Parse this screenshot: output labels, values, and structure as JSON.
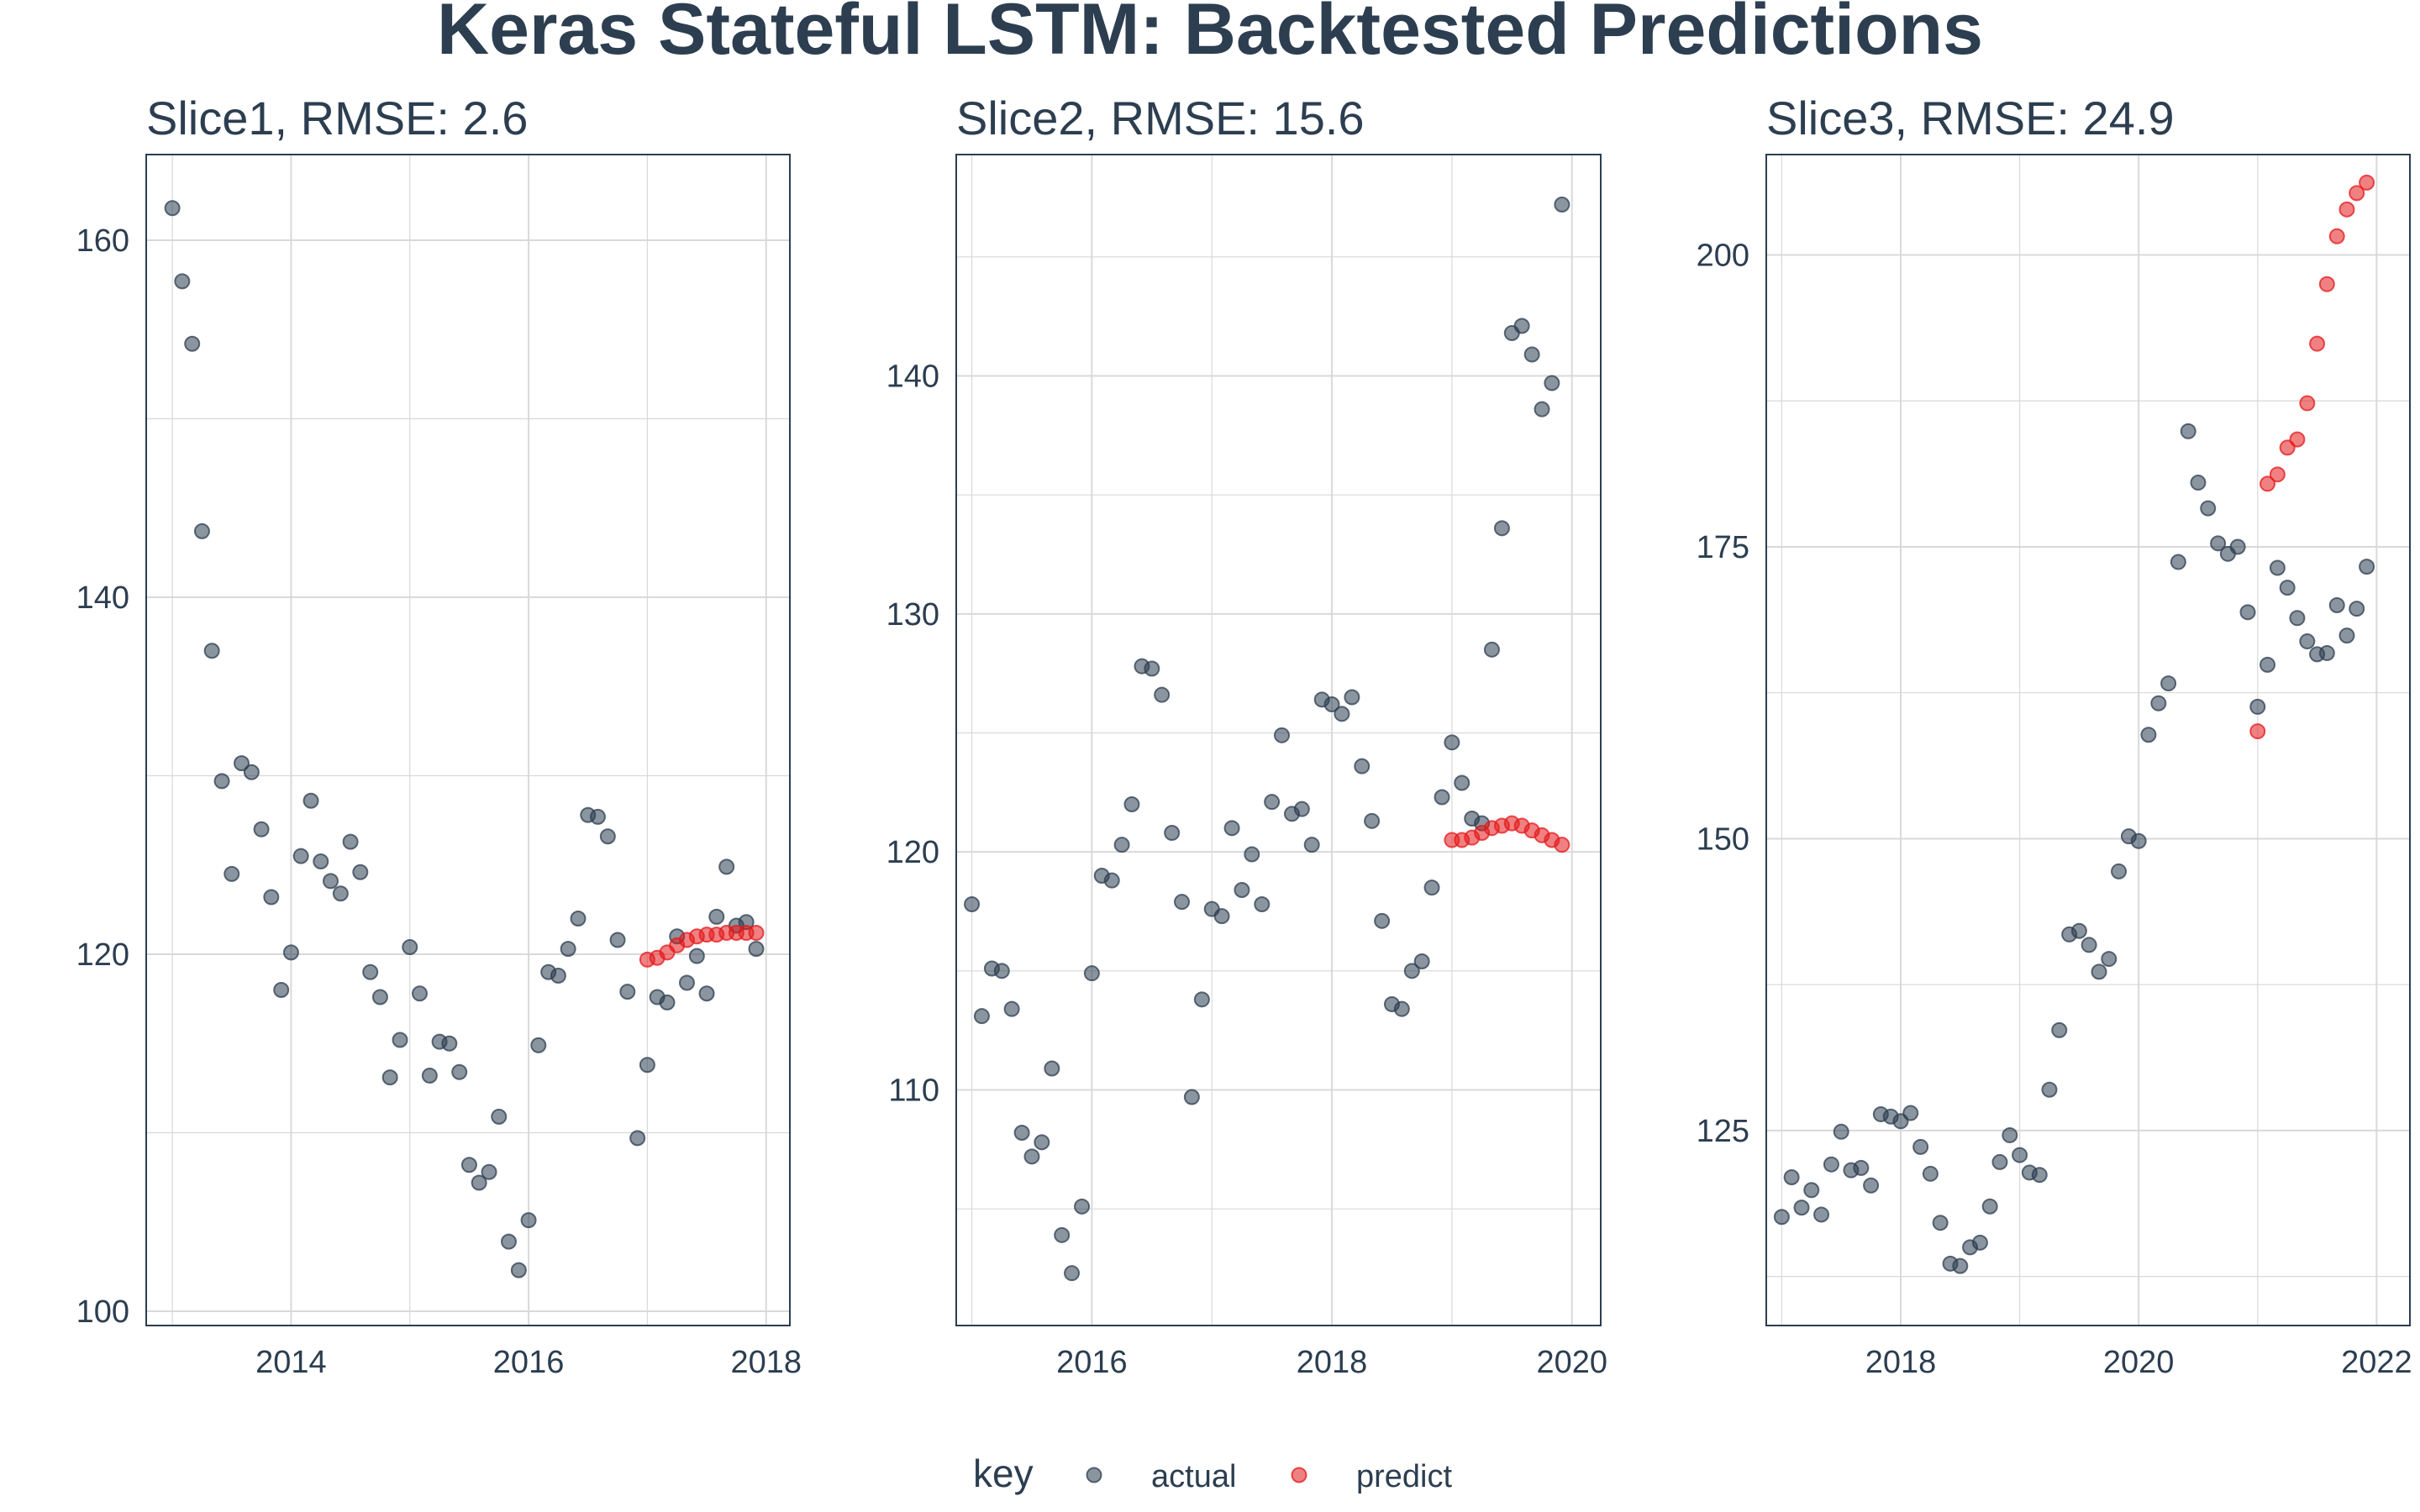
{
  "title": "Keras Stateful LSTM: Backtested Predictions",
  "colors": {
    "text": "#2c3e50",
    "actual": "#2c3e50",
    "predict": "#e31a1c",
    "grid": "#d9d9d9",
    "panel_border": "#2c3e50"
  },
  "legend": {
    "title": "key",
    "items": [
      {
        "label": "actual",
        "key": "actual"
      },
      {
        "label": "predict",
        "key": "predict"
      }
    ]
  },
  "chart_data": [
    {
      "type": "scatter",
      "title": "Slice1, RMSE: 2.6",
      "xlim": [
        2012.78,
        2018.2
      ],
      "ylim": [
        99.2,
        164.8
      ],
      "x_ticks": [
        2014,
        2016,
        2018
      ],
      "x_tick_labels": [
        "2014",
        "2016",
        "2018"
      ],
      "y_ticks": [
        100,
        120,
        140,
        160
      ],
      "y_tick_labels": [
        "100",
        "120",
        "140",
        "160"
      ],
      "grid": true,
      "actual": [
        [
          2013.0,
          161.8
        ],
        [
          2013.083,
          157.7
        ],
        [
          2013.167,
          154.2
        ],
        [
          2013.25,
          143.7
        ],
        [
          2013.333,
          137.0
        ],
        [
          2013.417,
          129.7
        ],
        [
          2013.5,
          124.5
        ],
        [
          2013.583,
          130.7
        ],
        [
          2013.667,
          130.2
        ],
        [
          2013.75,
          127.0
        ],
        [
          2013.833,
          123.2
        ],
        [
          2013.917,
          118.0
        ],
        [
          2014.0,
          120.1
        ],
        [
          2014.083,
          125.5
        ],
        [
          2014.167,
          128.6
        ],
        [
          2014.25,
          125.2
        ],
        [
          2014.333,
          124.1
        ],
        [
          2014.417,
          123.4
        ],
        [
          2014.5,
          126.3
        ],
        [
          2014.583,
          124.6
        ],
        [
          2014.667,
          119.0
        ],
        [
          2014.75,
          117.6
        ],
        [
          2014.833,
          113.1
        ],
        [
          2014.917,
          115.2
        ],
        [
          2015.0,
          120.4
        ],
        [
          2015.083,
          117.8
        ],
        [
          2015.167,
          113.2
        ],
        [
          2015.25,
          115.1
        ],
        [
          2015.333,
          115.0
        ],
        [
          2015.417,
          113.4
        ],
        [
          2015.5,
          108.2
        ],
        [
          2015.583,
          107.2
        ],
        [
          2015.667,
          107.8
        ],
        [
          2015.75,
          110.9
        ],
        [
          2015.833,
          103.9
        ],
        [
          2015.917,
          102.3
        ],
        [
          2016.0,
          105.1
        ],
        [
          2016.083,
          114.9
        ],
        [
          2016.167,
          119.0
        ],
        [
          2016.25,
          118.8
        ],
        [
          2016.333,
          120.3
        ],
        [
          2016.417,
          122.0
        ],
        [
          2016.5,
          127.8
        ],
        [
          2016.583,
          127.7
        ],
        [
          2016.667,
          126.6
        ],
        [
          2016.75,
          120.8
        ],
        [
          2016.833,
          117.9
        ],
        [
          2016.917,
          109.7
        ],
        [
          2017.0,
          113.8
        ],
        [
          2017.083,
          117.6
        ],
        [
          2017.167,
          117.3
        ],
        [
          2017.25,
          121.0
        ],
        [
          2017.333,
          118.4
        ],
        [
          2017.417,
          119.9
        ],
        [
          2017.5,
          117.8
        ],
        [
          2017.583,
          122.1
        ],
        [
          2017.667,
          124.9
        ],
        [
          2017.75,
          121.6
        ],
        [
          2017.833,
          121.8
        ],
        [
          2017.917,
          120.3
        ]
      ],
      "predict": [
        [
          2017.0,
          119.7
        ],
        [
          2017.083,
          119.8
        ],
        [
          2017.167,
          120.1
        ],
        [
          2017.25,
          120.5
        ],
        [
          2017.333,
          120.8
        ],
        [
          2017.417,
          121.0
        ],
        [
          2017.5,
          121.1
        ],
        [
          2017.583,
          121.1
        ],
        [
          2017.667,
          121.2
        ],
        [
          2017.75,
          121.2
        ],
        [
          2017.833,
          121.2
        ],
        [
          2017.917,
          121.2
        ]
      ]
    },
    {
      "type": "scatter",
      "title": "Slice2, RMSE: 15.6",
      "xlim": [
        2014.87,
        2020.24
      ],
      "ylim": [
        100.1,
        149.3
      ],
      "x_ticks": [
        2016,
        2018,
        2020
      ],
      "x_tick_labels": [
        "2016",
        "2018",
        "2020"
      ],
      "y_ticks": [
        110,
        120,
        130,
        140
      ],
      "y_tick_labels": [
        "110",
        "120",
        "130",
        "140"
      ],
      "grid": true,
      "actual": [
        [
          2015.0,
          117.8
        ],
        [
          2015.083,
          113.1
        ],
        [
          2015.167,
          115.1
        ],
        [
          2015.25,
          115.0
        ],
        [
          2015.333,
          113.4
        ],
        [
          2015.417,
          108.2
        ],
        [
          2015.5,
          107.2
        ],
        [
          2015.583,
          107.8
        ],
        [
          2015.667,
          110.9
        ],
        [
          2015.75,
          103.9
        ],
        [
          2015.833,
          102.3
        ],
        [
          2015.917,
          105.1
        ],
        [
          2016.0,
          114.9
        ],
        [
          2016.083,
          119.0
        ],
        [
          2016.167,
          118.8
        ],
        [
          2016.25,
          120.3
        ],
        [
          2016.333,
          122.0
        ],
        [
          2016.417,
          127.8
        ],
        [
          2016.5,
          127.7
        ],
        [
          2016.583,
          126.6
        ],
        [
          2016.667,
          120.8
        ],
        [
          2016.75,
          117.9
        ],
        [
          2016.833,
          109.7
        ],
        [
          2016.917,
          113.8
        ],
        [
          2017.0,
          117.6
        ],
        [
          2017.083,
          117.3
        ],
        [
          2017.167,
          121.0
        ],
        [
          2017.25,
          118.4
        ],
        [
          2017.333,
          119.9
        ],
        [
          2017.417,
          117.8
        ],
        [
          2017.5,
          122.1
        ],
        [
          2017.583,
          124.9
        ],
        [
          2017.667,
          121.6
        ],
        [
          2017.75,
          121.8
        ],
        [
          2017.833,
          120.3
        ],
        [
          2017.917,
          126.4
        ],
        [
          2018.0,
          126.2
        ],
        [
          2018.083,
          125.8
        ],
        [
          2018.167,
          126.5
        ],
        [
          2018.25,
          123.6
        ],
        [
          2018.333,
          121.3
        ],
        [
          2018.417,
          117.1
        ],
        [
          2018.5,
          113.6
        ],
        [
          2018.583,
          113.4
        ],
        [
          2018.667,
          115.0
        ],
        [
          2018.75,
          115.4
        ],
        [
          2018.833,
          118.5
        ],
        [
          2018.917,
          122.3
        ],
        [
          2019.0,
          124.6
        ],
        [
          2019.083,
          122.9
        ],
        [
          2019.167,
          121.4
        ],
        [
          2019.25,
          121.2
        ],
        [
          2019.333,
          128.5
        ],
        [
          2019.417,
          133.6
        ],
        [
          2019.5,
          141.8
        ],
        [
          2019.583,
          142.1
        ],
        [
          2019.667,
          140.9
        ],
        [
          2019.75,
          138.6
        ],
        [
          2019.833,
          139.7
        ],
        [
          2019.917,
          147.2
        ]
      ],
      "predict": [
        [
          2019.0,
          120.5
        ],
        [
          2019.083,
          120.5
        ],
        [
          2019.167,
          120.6
        ],
        [
          2019.25,
          120.8
        ],
        [
          2019.333,
          121.0
        ],
        [
          2019.417,
          121.1
        ],
        [
          2019.5,
          121.2
        ],
        [
          2019.583,
          121.1
        ],
        [
          2019.667,
          120.9
        ],
        [
          2019.75,
          120.7
        ],
        [
          2019.833,
          120.5
        ],
        [
          2019.917,
          120.3
        ]
      ]
    },
    {
      "type": "scatter",
      "title": "Slice3, RMSE: 24.9",
      "xlim": [
        2016.87,
        2022.28
      ],
      "ylim": [
        108.3,
        208.6
      ],
      "x_ticks": [
        2018,
        2020,
        2022
      ],
      "x_tick_labels": [
        "2018",
        "2020",
        "2022"
      ],
      "y_ticks": [
        125,
        150,
        175,
        200
      ],
      "y_tick_labels": [
        "125",
        "150",
        "175",
        "200"
      ],
      "grid": true,
      "actual": [
        [
          2017.0,
          117.6
        ],
        [
          2017.083,
          121.0
        ],
        [
          2017.167,
          118.4
        ],
        [
          2017.25,
          119.9
        ],
        [
          2017.333,
          117.8
        ],
        [
          2017.417,
          122.1
        ],
        [
          2017.5,
          124.9
        ],
        [
          2017.583,
          121.6
        ],
        [
          2017.667,
          121.8
        ],
        [
          2017.75,
          120.3
        ],
        [
          2017.833,
          126.4
        ],
        [
          2017.917,
          126.2
        ],
        [
          2018.0,
          125.8
        ],
        [
          2018.083,
          126.5
        ],
        [
          2018.167,
          123.6
        ],
        [
          2018.25,
          121.3
        ],
        [
          2018.333,
          117.1
        ],
        [
          2018.417,
          113.6
        ],
        [
          2018.5,
          113.4
        ],
        [
          2018.583,
          115.0
        ],
        [
          2018.667,
          115.4
        ],
        [
          2018.75,
          118.5
        ],
        [
          2018.833,
          122.3
        ],
        [
          2018.917,
          124.6
        ],
        [
          2019.0,
          122.9
        ],
        [
          2019.083,
          121.4
        ],
        [
          2019.167,
          121.2
        ],
        [
          2019.25,
          128.5
        ],
        [
          2019.333,
          133.6
        ],
        [
          2019.417,
          141.8
        ],
        [
          2019.5,
          142.1
        ],
        [
          2019.583,
          140.9
        ],
        [
          2019.667,
          138.6
        ],
        [
          2019.75,
          139.7
        ],
        [
          2019.833,
          147.2
        ],
        [
          2019.917,
          150.2
        ],
        [
          2020.0,
          149.8
        ],
        [
          2020.083,
          158.9
        ],
        [
          2020.167,
          161.6
        ],
        [
          2020.25,
          163.3
        ],
        [
          2020.333,
          173.7
        ],
        [
          2020.417,
          184.9
        ],
        [
          2020.5,
          180.5
        ],
        [
          2020.583,
          178.3
        ],
        [
          2020.667,
          175.3
        ],
        [
          2020.75,
          174.4
        ],
        [
          2020.833,
          175.0
        ],
        [
          2020.917,
          169.4
        ],
        [
          2021.0,
          161.3
        ],
        [
          2021.083,
          164.9
        ],
        [
          2021.167,
          173.2
        ],
        [
          2021.25,
          171.5
        ],
        [
          2021.333,
          168.9
        ],
        [
          2021.417,
          166.9
        ],
        [
          2021.5,
          165.8
        ],
        [
          2021.583,
          165.9
        ],
        [
          2021.667,
          170.0
        ],
        [
          2021.75,
          167.4
        ],
        [
          2021.833,
          169.7
        ],
        [
          2021.917,
          173.3
        ]
      ],
      "predict": [
        [
          2021.0,
          159.2
        ],
        [
          2021.083,
          180.4
        ],
        [
          2021.167,
          181.2
        ],
        [
          2021.25,
          183.5
        ],
        [
          2021.333,
          184.2
        ],
        [
          2021.417,
          187.3
        ],
        [
          2021.5,
          192.4
        ],
        [
          2021.583,
          197.5
        ],
        [
          2021.667,
          201.6
        ],
        [
          2021.75,
          203.9
        ],
        [
          2021.833,
          205.3
        ],
        [
          2021.917,
          206.2
        ]
      ]
    }
  ]
}
